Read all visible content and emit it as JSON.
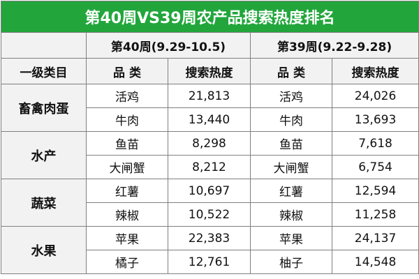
{
  "title": "第40周VS39周农产品搜索热度排名",
  "table": {
    "week_headers": [
      "第40周(9.29-10.5)",
      "第39周(9.22-9.28)"
    ],
    "column_headers": [
      "一级类目",
      "品 类",
      "搜索热度",
      "品 类",
      "搜索热度"
    ],
    "groups": [
      {
        "category": "畜禽肉蛋",
        "rows": [
          [
            "活鸡",
            "21,813",
            "活鸡",
            "24,026"
          ],
          [
            "牛肉",
            "13,440",
            "牛肉",
            "13,693"
          ]
        ]
      },
      {
        "category": "水产",
        "rows": [
          [
            "鱼苗",
            "8,298",
            "鱼苗",
            "7,618"
          ],
          [
            "大闸蟹",
            "8,212",
            "大闸蟹",
            "6,754"
          ]
        ]
      },
      {
        "category": "蔬菜",
        "rows": [
          [
            "红薯",
            "10,697",
            "红薯",
            "12,594"
          ],
          [
            "辣椒",
            "10,522",
            "辣椒",
            "11,258"
          ]
        ]
      },
      {
        "category": "水果",
        "rows": [
          [
            "苹果",
            "22,383",
            "苹果",
            "24,137"
          ],
          [
            "橘子",
            "12,761",
            "柚子",
            "14,548"
          ]
        ]
      }
    ]
  }
}
